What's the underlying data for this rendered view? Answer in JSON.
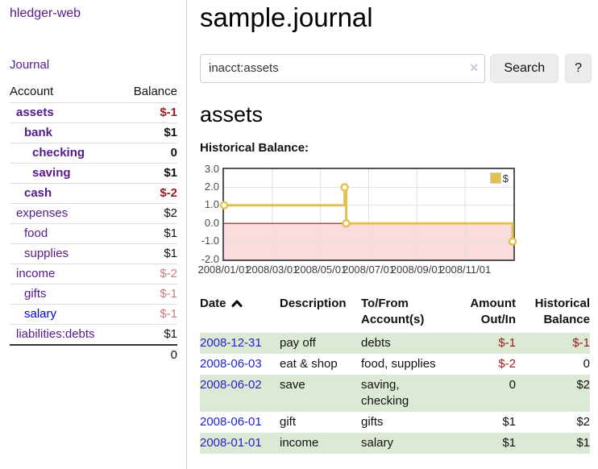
{
  "colors": {
    "link_purple": "#551a8b",
    "link_blue": "#0000e0",
    "date_link_blue": "#2323cc",
    "negative_dark_red": "#9b1c1c",
    "negative_rose": "#c47d7d",
    "row_green": "#dce9d5",
    "chart_line": "#e6c04d",
    "chart_negative_fill": "#fadcdc",
    "chart_zero_line": "#8e1a1a",
    "chart_border": "#545454",
    "gridline": "#e0e0e0",
    "button_bg": "#ececec"
  },
  "sidebar": {
    "brand": "hledger-web",
    "nav": {
      "journal": "Journal"
    },
    "accounts_table": {
      "headers": {
        "account": "Account",
        "balance": "Balance"
      },
      "rows": [
        {
          "name": "assets",
          "indent": 0,
          "bold": true,
          "link": "purple",
          "balance": "$-1",
          "amount": "neg"
        },
        {
          "name": "bank",
          "indent": 1,
          "bold": true,
          "link": "purple",
          "balance": "$1",
          "amount": "pos"
        },
        {
          "name": "checking",
          "indent": 2,
          "bold": true,
          "link": "purple",
          "balance": "0",
          "amount": "pos"
        },
        {
          "name": "saving",
          "indent": 2,
          "bold": true,
          "link": "purple",
          "balance": "$1",
          "amount": "pos"
        },
        {
          "name": "cash",
          "indent": 1,
          "bold": true,
          "link": "purple",
          "balance": "$-2",
          "amount": "neg"
        },
        {
          "name": "expenses",
          "indent": 0,
          "bold": false,
          "link": "purple",
          "balance": "$2",
          "amount": "pos"
        },
        {
          "name": "food",
          "indent": 1,
          "bold": false,
          "link": "purple",
          "balance": "$1",
          "amount": "pos"
        },
        {
          "name": "supplies",
          "indent": 1,
          "bold": false,
          "link": "purple",
          "balance": "$1",
          "amount": "pos"
        },
        {
          "name": "income",
          "indent": 0,
          "bold": false,
          "link": "purple",
          "balance": "$-2",
          "amount": "rose"
        },
        {
          "name": "gifts",
          "indent": 1,
          "bold": false,
          "link": "purple",
          "balance": "$-1",
          "amount": "rose"
        },
        {
          "name": "salary",
          "indent": 1,
          "bold": false,
          "link": "blue",
          "balance": "$-1",
          "amount": "rose"
        },
        {
          "name": "liabilities:debts",
          "indent": 0,
          "bold": false,
          "link": "purple",
          "balance": "$1",
          "amount": "pos"
        }
      ],
      "total": "0"
    }
  },
  "main": {
    "title": "sample.journal",
    "search": {
      "query": "inacct:assets",
      "clear_icon": "×",
      "search_button": "Search",
      "help_button": "?"
    },
    "account_heading": "assets",
    "chart_label": "Historical Balance:"
  },
  "chart_data": {
    "type": "line",
    "step": true,
    "title": "Historical Balance",
    "ylim": [
      -2,
      3
    ],
    "xlim_months": [
      0,
      12
    ],
    "grid": true,
    "legend": {
      "label": "$",
      "position": "top-right"
    },
    "y_ticks": [
      {
        "label": "3.0",
        "value": 3
      },
      {
        "label": "2.0",
        "value": 2
      },
      {
        "label": "1.0",
        "value": 1
      },
      {
        "label": "0.0",
        "value": 0
      },
      {
        "label": "-1.0",
        "value": -1
      },
      {
        "label": "-2.0",
        "value": -2
      }
    ],
    "x_ticks": [
      {
        "label": "2008/01/01",
        "month": 0
      },
      {
        "label": "2008/03/01",
        "month": 2
      },
      {
        "label": "2008/05/01",
        "month": 4
      },
      {
        "label": "2008/07/01",
        "month": 6
      },
      {
        "label": "2008/09/01",
        "month": 8
      },
      {
        "label": "2008/11/01",
        "month": 10
      }
    ],
    "points": [
      {
        "date": "2008-01-01",
        "value": 1,
        "marker": true
      },
      {
        "date": "2008-06-01",
        "value": 2,
        "marker": true
      },
      {
        "date": "2008-06-02",
        "value": 2,
        "marker": false
      },
      {
        "date": "2008-06-03",
        "value": 0,
        "marker": true
      },
      {
        "date": "2008-12-31",
        "value": -1,
        "marker": true
      }
    ]
  },
  "register_table": {
    "headers": [
      "Date",
      "Description",
      "To/From Account(s)",
      "Amount Out/In",
      "Historical Balance"
    ],
    "sort_column": "Date",
    "sort_direction": "ascending",
    "rows": [
      {
        "date": "2008-12-31",
        "description": "pay off",
        "accounts": "debts",
        "amount": "$-1",
        "amount_neg": true,
        "balance": "$-1",
        "balance_neg": true
      },
      {
        "date": "2008-06-03",
        "description": "eat & shop",
        "accounts": "food, supplies",
        "amount": "$-2",
        "amount_neg": true,
        "balance": "0",
        "balance_neg": false
      },
      {
        "date": "2008-06-02",
        "description": "save",
        "accounts": "saving,\nchecking",
        "amount": "0",
        "amount_neg": false,
        "balance": "$2",
        "balance_neg": false
      },
      {
        "date": "2008-06-01",
        "description": "gift",
        "accounts": "gifts",
        "amount": "$1",
        "amount_neg": false,
        "balance": "$2",
        "balance_neg": false
      },
      {
        "date": "2008-01-01",
        "description": "income",
        "accounts": "salary",
        "amount": "$1",
        "amount_neg": false,
        "balance": "$1",
        "balance_neg": false
      }
    ]
  }
}
